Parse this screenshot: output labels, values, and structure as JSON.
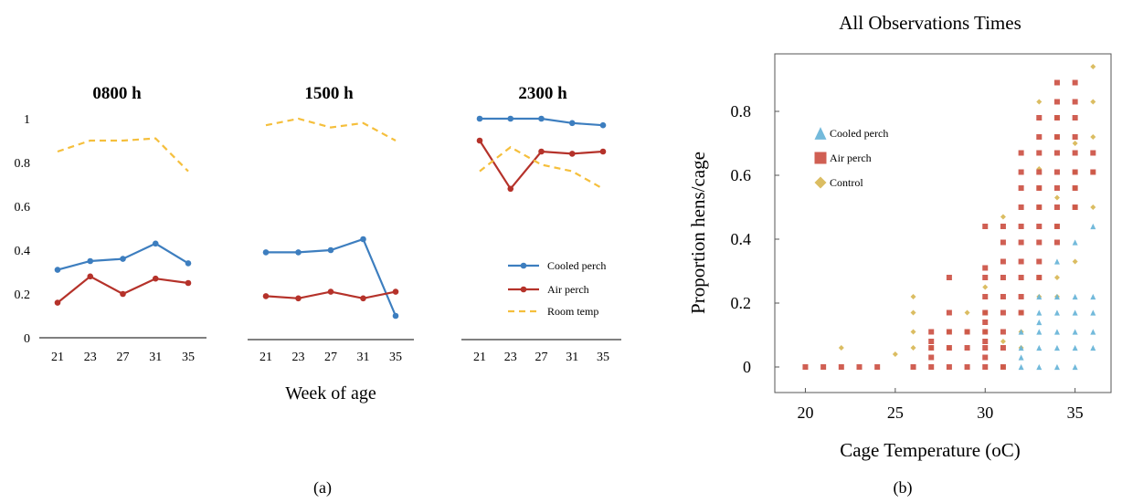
{
  "colors": {
    "cooled": "#3d7ebf",
    "air": "#b5322a",
    "room": "#f5bf3c",
    "scatter_cooled": "#6cb6d9",
    "scatter_air": "#cc5144",
    "scatter_control": "#d9b95a"
  },
  "panel_a": {
    "caption": "(a)",
    "xlabel": "Week of age",
    "yticks": [
      "1",
      "0.8",
      "0.6",
      "0.4",
      "0.2",
      "0"
    ],
    "xticks": [
      "21",
      "23",
      "27",
      "31",
      "35"
    ],
    "legend": [
      "Cooled perch",
      "Air perch",
      "Room temp"
    ]
  },
  "panel_b": {
    "caption": "(b)",
    "title": "All Observations Times",
    "xlabel": "Cage Temperature (oC)",
    "ylabel": "Proportion hens/cage",
    "xticks": [
      "20",
      "25",
      "30",
      "35"
    ],
    "yticks": [
      "0",
      "0.2",
      "0.4",
      "0.6",
      "0.8"
    ],
    "legend": [
      "Cooled perch",
      "Air perch",
      "Control"
    ]
  },
  "chart_data": [
    {
      "type": "line",
      "title": "0800 h",
      "categories": [
        "21",
        "23",
        "27",
        "31",
        "35"
      ],
      "ylim": [
        0,
        1
      ],
      "series": [
        {
          "name": "Cooled perch",
          "values": [
            0.31,
            0.35,
            0.36,
            0.43,
            0.34
          ]
        },
        {
          "name": "Air perch",
          "values": [
            0.16,
            0.28,
            0.2,
            0.27,
            0.25
          ]
        },
        {
          "name": "Room temp",
          "values": [
            0.85,
            0.9,
            0.9,
            0.91,
            0.76
          ]
        }
      ]
    },
    {
      "type": "line",
      "title": "1500 h",
      "categories": [
        "21",
        "23",
        "27",
        "31",
        "35"
      ],
      "ylim": [
        0,
        1
      ],
      "series": [
        {
          "name": "Cooled perch",
          "values": [
            0.39,
            0.39,
            0.4,
            0.45,
            0.1
          ]
        },
        {
          "name": "Air perch",
          "values": [
            0.19,
            0.18,
            0.21,
            0.18,
            0.21
          ]
        },
        {
          "name": "Room temp",
          "values": [
            0.97,
            1.0,
            0.96,
            0.98,
            0.9
          ]
        }
      ]
    },
    {
      "type": "line",
      "title": "2300 h",
      "categories": [
        "21",
        "23",
        "27",
        "31",
        "35"
      ],
      "ylim": [
        0,
        1
      ],
      "series": [
        {
          "name": "Cooled perch",
          "values": [
            1.0,
            1.0,
            1.0,
            0.98,
            0.97
          ]
        },
        {
          "name": "Air perch",
          "values": [
            0.9,
            0.68,
            0.85,
            0.84,
            0.85
          ]
        },
        {
          "name": "Room temp",
          "values": [
            0.76,
            0.87,
            0.79,
            0.76,
            0.68
          ]
        }
      ]
    },
    {
      "type": "scatter",
      "title": "All Observations Times",
      "xlabel": "Cage Temperature (oC)",
      "ylabel": "Proportion hens/cage",
      "xlim": [
        18.3,
        37
      ],
      "ylim": [
        -0.08,
        0.98
      ],
      "series": [
        {
          "name": "Cooled perch",
          "points": [
            [
              32,
              0
            ],
            [
              32,
              0.03
            ],
            [
              32,
              0.06
            ],
            [
              32,
              0.11
            ],
            [
              33,
              0
            ],
            [
              33,
              0.06
            ],
            [
              33,
              0.11
            ],
            [
              33,
              0.14
            ],
            [
              33,
              0.17
            ],
            [
              33,
              0.22
            ],
            [
              34,
              0
            ],
            [
              34,
              0.06
            ],
            [
              34,
              0.11
            ],
            [
              34,
              0.17
            ],
            [
              34,
              0.22
            ],
            [
              34,
              0.33
            ],
            [
              35,
              0
            ],
            [
              35,
              0.06
            ],
            [
              35,
              0.11
            ],
            [
              35,
              0.17
            ],
            [
              35,
              0.22
            ],
            [
              35,
              0.39
            ],
            [
              36,
              0.06
            ],
            [
              36,
              0.11
            ],
            [
              36,
              0.17
            ],
            [
              36,
              0.22
            ],
            [
              36,
              0.44
            ]
          ]
        },
        {
          "name": "Air perch",
          "points": [
            [
              20,
              0
            ],
            [
              21,
              0
            ],
            [
              22,
              0
            ],
            [
              23,
              0
            ],
            [
              24,
              0
            ],
            [
              26,
              0
            ],
            [
              27,
              0
            ],
            [
              27,
              0.03
            ],
            [
              27,
              0.06
            ],
            [
              27,
              0.08
            ],
            [
              27,
              0.11
            ],
            [
              28,
              0
            ],
            [
              28,
              0.06
            ],
            [
              28,
              0.11
            ],
            [
              28,
              0.17
            ],
            [
              28,
              0.28
            ],
            [
              29,
              0
            ],
            [
              29,
              0.06
            ],
            [
              29,
              0.11
            ],
            [
              30,
              0
            ],
            [
              30,
              0.03
            ],
            [
              30,
              0.06
            ],
            [
              30,
              0.08
            ],
            [
              30,
              0.11
            ],
            [
              30,
              0.14
            ],
            [
              30,
              0.17
            ],
            [
              30,
              0.22
            ],
            [
              30,
              0.28
            ],
            [
              30,
              0.31
            ],
            [
              30,
              0.44
            ],
            [
              31,
              0
            ],
            [
              31,
              0.06
            ],
            [
              31,
              0.11
            ],
            [
              31,
              0.17
            ],
            [
              31,
              0.22
            ],
            [
              31,
              0.28
            ],
            [
              31,
              0.33
            ],
            [
              31,
              0.39
            ],
            [
              31,
              0.44
            ],
            [
              32,
              0.17
            ],
            [
              32,
              0.22
            ],
            [
              32,
              0.28
            ],
            [
              32,
              0.33
            ],
            [
              32,
              0.39
            ],
            [
              32,
              0.44
            ],
            [
              32,
              0.5
            ],
            [
              32,
              0.56
            ],
            [
              32,
              0.61
            ],
            [
              32,
              0.67
            ],
            [
              33,
              0.28
            ],
            [
              33,
              0.33
            ],
            [
              33,
              0.39
            ],
            [
              33,
              0.44
            ],
            [
              33,
              0.5
            ],
            [
              33,
              0.56
            ],
            [
              33,
              0.61
            ],
            [
              33,
              0.67
            ],
            [
              33,
              0.72
            ],
            [
              33,
              0.78
            ],
            [
              34,
              0.39
            ],
            [
              34,
              0.44
            ],
            [
              34,
              0.5
            ],
            [
              34,
              0.56
            ],
            [
              34,
              0.61
            ],
            [
              34,
              0.67
            ],
            [
              34,
              0.72
            ],
            [
              34,
              0.78
            ],
            [
              34,
              0.83
            ],
            [
              34,
              0.89
            ],
            [
              35,
              0.5
            ],
            [
              35,
              0.56
            ],
            [
              35,
              0.61
            ],
            [
              35,
              0.67
            ],
            [
              35,
              0.72
            ],
            [
              35,
              0.78
            ],
            [
              35,
              0.83
            ],
            [
              35,
              0.89
            ],
            [
              36,
              0.61
            ],
            [
              36,
              0.67
            ]
          ]
        },
        {
          "name": "Control",
          "points": [
            [
              22,
              0.06
            ],
            [
              25,
              0.04
            ],
            [
              26,
              0.06
            ],
            [
              26,
              0.11
            ],
            [
              26,
              0.17
            ],
            [
              26,
              0.22
            ],
            [
              27,
              0.06
            ],
            [
              28,
              0.06
            ],
            [
              28,
              0.11
            ],
            [
              29,
              0.11
            ],
            [
              29,
              0.17
            ],
            [
              30,
              0.11
            ],
            [
              30,
              0.17
            ],
            [
              30,
              0.25
            ],
            [
              31,
              0.0
            ],
            [
              31,
              0.08
            ],
            [
              31,
              0.47
            ],
            [
              32,
              0.06
            ],
            [
              32,
              0.11
            ],
            [
              32,
              0.17
            ],
            [
              33,
              0.22
            ],
            [
              33,
              0.28
            ],
            [
              33,
              0.5
            ],
            [
              33,
              0.56
            ],
            [
              33,
              0.62
            ],
            [
              33,
              0.83
            ],
            [
              34,
              0.22
            ],
            [
              34,
              0.28
            ],
            [
              34,
              0.44
            ],
            [
              34,
              0.53
            ],
            [
              34,
              0.72
            ],
            [
              34,
              0.78
            ],
            [
              35,
              0.33
            ],
            [
              35,
              0.5
            ],
            [
              35,
              0.56
            ],
            [
              35,
              0.61
            ],
            [
              35,
              0.7
            ],
            [
              36,
              0.5
            ],
            [
              36,
              0.61
            ],
            [
              36,
              0.72
            ],
            [
              36,
              0.83
            ],
            [
              36,
              0.94
            ]
          ]
        }
      ]
    }
  ]
}
